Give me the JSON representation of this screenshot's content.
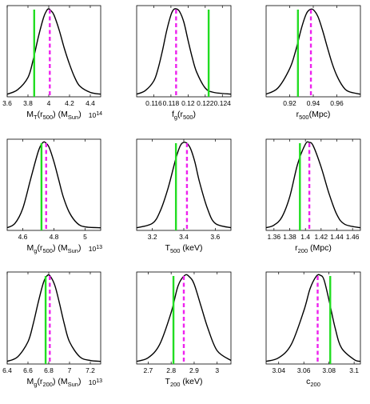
{
  "colors": {
    "curve": "#000000",
    "true_line": "#22dd22",
    "median_line": "#ee22ee",
    "axes": "#000000"
  },
  "chart_data": [
    {
      "type": "line",
      "xlim": [
        3.6,
        4.5
      ],
      "xticks": [
        {
          "v": 3.6,
          "t": "3.6"
        },
        {
          "v": 3.8,
          "t": "3.8"
        },
        {
          "v": 4.0,
          "t": "4"
        },
        {
          "v": 4.2,
          "t": "4.2"
        },
        {
          "v": 4.4,
          "t": "4.4"
        }
      ],
      "xlabel": {
        "segments": [
          {
            "t": "M"
          },
          {
            "t": "T",
            "s": "sub"
          },
          {
            "t": "(r"
          },
          {
            "t": "500",
            "s": "sub"
          },
          {
            "t": ") (M"
          },
          {
            "t": "Sun",
            "s": "sub"
          },
          {
            "t": ")"
          }
        ]
      },
      "multiplier": "10",
      "multiplier_exp": "14",
      "series": [
        {
          "x": [
            3.6,
            3.7,
            3.8,
            3.85,
            3.9,
            3.95,
            3.98,
            4.0,
            4.02,
            4.05,
            4.1,
            4.15,
            4.2,
            4.25,
            4.3,
            4.4,
            4.5
          ],
          "values": [
            0.03,
            0.08,
            0.22,
            0.42,
            0.68,
            0.9,
            0.98,
            1.0,
            0.98,
            0.93,
            0.76,
            0.55,
            0.37,
            0.22,
            0.12,
            0.05,
            0.03
          ]
        }
      ],
      "true_value": 3.86,
      "median": 4.01
    },
    {
      "type": "line",
      "xlim": [
        0.114,
        0.125
      ],
      "xticks": [
        {
          "v": 0.116,
          "t": "0.116"
        },
        {
          "v": 0.118,
          "t": "0.118"
        },
        {
          "v": 0.12,
          "t": "0.12"
        },
        {
          "v": 0.122,
          "t": "0.122"
        },
        {
          "v": 0.124,
          "t": "0.124"
        }
      ],
      "xlabel": {
        "segments": [
          {
            "t": "f"
          },
          {
            "t": "g",
            "s": "sub"
          },
          {
            "t": "(r"
          },
          {
            "t": "500",
            "s": "sub"
          },
          {
            "t": ")"
          }
        ]
      },
      "series": [
        {
          "x": [
            0.114,
            0.115,
            0.116,
            0.1165,
            0.117,
            0.1175,
            0.118,
            0.1183,
            0.1186,
            0.119,
            0.1195,
            0.12,
            0.1205,
            0.121,
            0.122,
            0.123,
            0.125
          ],
          "values": [
            0.03,
            0.07,
            0.18,
            0.32,
            0.52,
            0.75,
            0.93,
            0.99,
            1.0,
            0.97,
            0.85,
            0.64,
            0.44,
            0.28,
            0.1,
            0.05,
            0.03
          ]
        }
      ],
      "true_value": 0.1224,
      "median": 0.1186
    },
    {
      "type": "line",
      "xlim": [
        0.9,
        0.98
      ],
      "xticks": [
        {
          "v": 0.92,
          "t": "0.92"
        },
        {
          "v": 0.94,
          "t": "0.94"
        },
        {
          "v": 0.96,
          "t": "0.96"
        }
      ],
      "xlabel": {
        "segments": [
          {
            "t": "r"
          },
          {
            "t": "500",
            "s": "sub"
          },
          {
            "t": "(Mpc)"
          }
        ]
      },
      "series": [
        {
          "x": [
            0.9,
            0.91,
            0.92,
            0.925,
            0.93,
            0.934,
            0.937,
            0.94,
            0.944,
            0.948,
            0.952,
            0.956,
            0.96,
            0.965,
            0.97,
            0.98
          ],
          "values": [
            0.03,
            0.1,
            0.32,
            0.52,
            0.78,
            0.94,
            0.99,
            0.99,
            0.91,
            0.75,
            0.56,
            0.38,
            0.24,
            0.12,
            0.06,
            0.03
          ]
        }
      ],
      "true_value": 0.927,
      "median": 0.938
    },
    {
      "type": "line",
      "xlim": [
        4.5,
        5.1
      ],
      "xticks": [
        {
          "v": 4.6,
          "t": "4.6"
        },
        {
          "v": 4.8,
          "t": "4.8"
        },
        {
          "v": 5.0,
          "t": "5"
        }
      ],
      "xlabel": {
        "segments": [
          {
            "t": "M"
          },
          {
            "t": "g",
            "s": "sub"
          },
          {
            "t": "(r"
          },
          {
            "t": "500",
            "s": "sub"
          },
          {
            "t": ") (M"
          },
          {
            "t": "Sun",
            "s": "sub"
          },
          {
            "t": ")"
          }
        ]
      },
      "multiplier": "10",
      "multiplier_exp": "13",
      "series": [
        {
          "x": [
            4.5,
            4.55,
            4.6,
            4.65,
            4.7,
            4.73,
            4.75,
            4.77,
            4.8,
            4.83,
            4.86,
            4.9,
            4.95,
            5.0,
            5.1
          ],
          "values": [
            0.03,
            0.08,
            0.25,
            0.58,
            0.9,
            1.0,
            0.99,
            0.94,
            0.78,
            0.58,
            0.38,
            0.2,
            0.08,
            0.04,
            0.03
          ]
        }
      ],
      "true_value": 4.72,
      "median": 4.75
    },
    {
      "type": "line",
      "xlim": [
        3.1,
        3.7
      ],
      "xticks": [
        {
          "v": 3.2,
          "t": "3.2"
        },
        {
          "v": 3.4,
          "t": "3.4"
        },
        {
          "v": 3.6,
          "t": "3.6"
        }
      ],
      "xlabel": {
        "segments": [
          {
            "t": "T"
          },
          {
            "t": "500",
            "s": "sub"
          },
          {
            "t": " (keV)"
          }
        ]
      },
      "series": [
        {
          "x": [
            3.1,
            3.2,
            3.25,
            3.3,
            3.35,
            3.38,
            3.41,
            3.44,
            3.47,
            3.5,
            3.55,
            3.6,
            3.7
          ],
          "values": [
            0.03,
            0.08,
            0.22,
            0.48,
            0.82,
            0.97,
            1.0,
            0.94,
            0.78,
            0.55,
            0.25,
            0.08,
            0.03
          ]
        }
      ],
      "true_value": 3.35,
      "median": 3.42
    },
    {
      "type": "line",
      "xlim": [
        1.35,
        1.47
      ],
      "xticks": [
        {
          "v": 1.36,
          "t": "1.36"
        },
        {
          "v": 1.38,
          "t": "1.38"
        },
        {
          "v": 1.4,
          "t": "1.4"
        },
        {
          "v": 1.42,
          "t": "1.42"
        },
        {
          "v": 1.44,
          "t": "1.44"
        },
        {
          "v": 1.46,
          "t": "1.46"
        }
      ],
      "xlabel": {
        "segments": [
          {
            "t": "r"
          },
          {
            "t": "200",
            "s": "sub"
          },
          {
            "t": " (Mpc)"
          }
        ]
      },
      "series": [
        {
          "x": [
            1.35,
            1.36,
            1.37,
            1.38,
            1.39,
            1.4,
            1.405,
            1.41,
            1.42,
            1.43,
            1.44,
            1.45,
            1.47
          ],
          "values": [
            0.03,
            0.06,
            0.15,
            0.38,
            0.75,
            0.98,
            1.0,
            0.96,
            0.72,
            0.42,
            0.18,
            0.07,
            0.03
          ]
        }
      ],
      "true_value": 1.393,
      "median": 1.405
    },
    {
      "type": "line",
      "xlim": [
        6.4,
        7.3
      ],
      "xticks": [
        {
          "v": 6.4,
          "t": "6.4"
        },
        {
          "v": 6.6,
          "t": "6.6"
        },
        {
          "v": 6.8,
          "t": "6.8"
        },
        {
          "v": 7.0,
          "t": "7"
        },
        {
          "v": 7.2,
          "t": "7.2"
        }
      ],
      "xlabel": {
        "segments": [
          {
            "t": "M"
          },
          {
            "t": "g",
            "s": "sub"
          },
          {
            "t": "(r"
          },
          {
            "t": "200",
            "s": "sub"
          },
          {
            "t": ") (M"
          },
          {
            "t": "Sun",
            "s": "sub"
          },
          {
            "t": ")"
          }
        ]
      },
      "multiplier": "10",
      "multiplier_exp": "13",
      "series": [
        {
          "x": [
            6.4,
            6.5,
            6.6,
            6.65,
            6.7,
            6.75,
            6.79,
            6.82,
            6.86,
            6.9,
            6.95,
            7.0,
            7.1,
            7.2,
            7.3
          ],
          "values": [
            0.03,
            0.08,
            0.25,
            0.45,
            0.7,
            0.92,
            1.0,
            0.98,
            0.88,
            0.7,
            0.45,
            0.25,
            0.08,
            0.04,
            0.03
          ]
        }
      ],
      "true_value": 6.77,
      "median": 6.81
    },
    {
      "type": "line",
      "xlim": [
        2.65,
        3.06
      ],
      "xticks": [
        {
          "v": 2.7,
          "t": "2.7"
        },
        {
          "v": 2.8,
          "t": "2.8"
        },
        {
          "v": 2.9,
          "t": "2.9"
        },
        {
          "v": 3.0,
          "t": "3"
        }
      ],
      "xlabel": {
        "segments": [
          {
            "t": "T"
          },
          {
            "t": "200",
            "s": "sub"
          },
          {
            "t": " (keV)"
          }
        ]
      },
      "series": [
        {
          "x": [
            2.65,
            2.7,
            2.75,
            2.8,
            2.83,
            2.86,
            2.88,
            2.9,
            2.93,
            2.96,
            3.0,
            3.06
          ],
          "values": [
            0.03,
            0.07,
            0.22,
            0.58,
            0.88,
            1.0,
            0.98,
            0.9,
            0.65,
            0.4,
            0.15,
            0.04
          ]
        }
      ],
      "true_value": 2.81,
      "median": 2.855
    },
    {
      "type": "line",
      "xlim": [
        3.03,
        3.105
      ],
      "xticks": [
        {
          "v": 3.04,
          "t": "3.04"
        },
        {
          "v": 3.06,
          "t": "3.06"
        },
        {
          "v": 3.08,
          "t": "3.08"
        },
        {
          "v": 3.1,
          "t": "3.1"
        }
      ],
      "xlabel": {
        "segments": [
          {
            "t": "c"
          },
          {
            "t": "200",
            "s": "sub"
          }
        ]
      },
      "series": [
        {
          "x": [
            3.03,
            3.04,
            3.05,
            3.06,
            3.065,
            3.07,
            3.073,
            3.076,
            3.08,
            3.085,
            3.09,
            3.1,
            3.105
          ],
          "values": [
            0.03,
            0.07,
            0.22,
            0.6,
            0.85,
            0.99,
            1.0,
            0.95,
            0.72,
            0.4,
            0.18,
            0.05,
            0.03
          ]
        }
      ],
      "true_value": 3.081,
      "median": 3.071
    }
  ]
}
